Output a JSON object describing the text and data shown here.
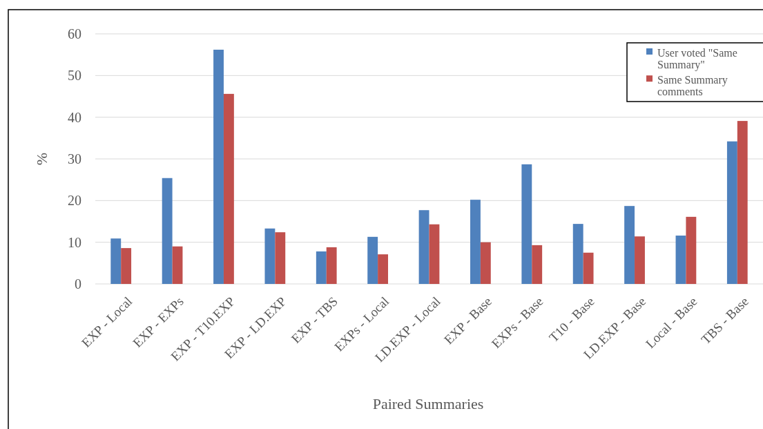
{
  "chart_data": {
    "type": "bar",
    "xlabel": "Paired Summaries",
    "ylabel": "%",
    "categories": [
      "EXP - Local",
      "EXP - EXPs",
      "EXP - T10.EXP",
      "EXP - LD.EXP",
      "EXP - TBS",
      "EXPs - Local",
      "LD.EXP - Local",
      "EXP - Base",
      "EXPs - Base",
      "T10 - Base",
      "LD.EXP - Base",
      "Local - Base",
      "TBS - Base"
    ],
    "series": [
      {
        "name": "User voted \"Same Summary\"",
        "color": "#4f81bd",
        "values": [
          10.9,
          25.4,
          56.2,
          13.3,
          7.8,
          11.3,
          17.7,
          20.2,
          28.7,
          14.4,
          18.7,
          11.6,
          34.2
        ]
      },
      {
        "name": "Same Summary comments",
        "color": "#c0504d",
        "values": [
          8.6,
          9.0,
          45.6,
          12.4,
          8.8,
          7.1,
          14.3,
          10.0,
          9.3,
          7.5,
          11.4,
          16.1,
          39.1
        ]
      }
    ],
    "ylim": [
      0,
      60
    ],
    "yticks": [
      0,
      10,
      20,
      30,
      40,
      50,
      60
    ],
    "grid": "y",
    "legend": "top right"
  }
}
